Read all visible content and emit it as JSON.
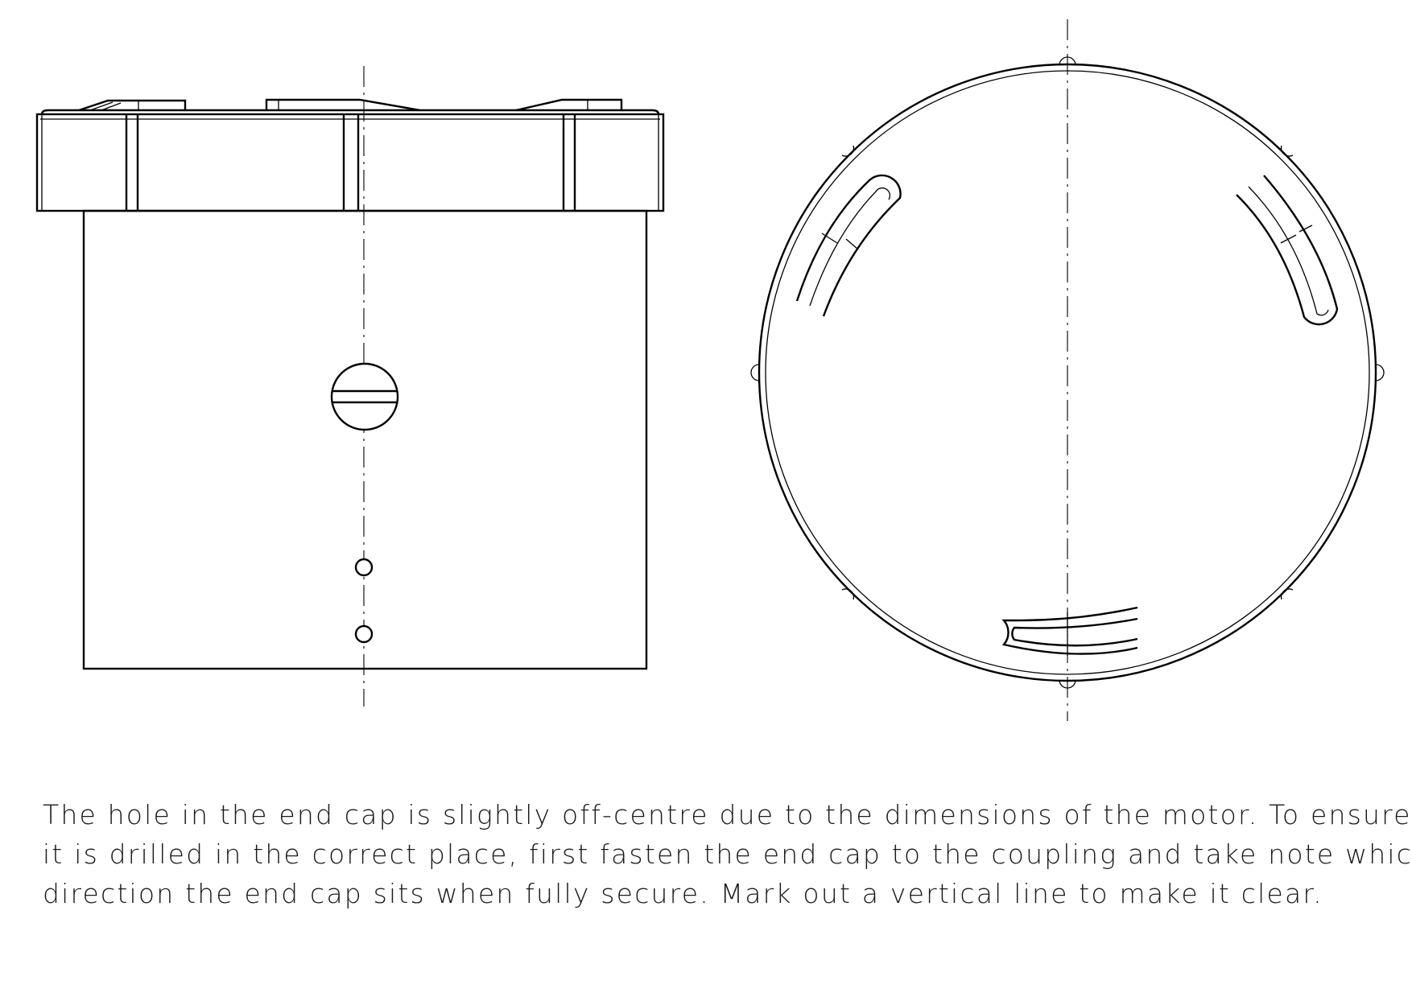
{
  "caption": {
    "lines": [
      "The hole in the end cap is slightly off-centre due to the dimensions of the motor. To ensure",
      "it is drilled in the correct place, first fasten the end cap to the coupling and take note which",
      "direction the end cap sits when fully secure. Mark out a vertical line to make it clear."
    ]
  },
  "colors": {
    "line": "#000000",
    "text": "#1a1a1a",
    "background": "#ffffff"
  }
}
